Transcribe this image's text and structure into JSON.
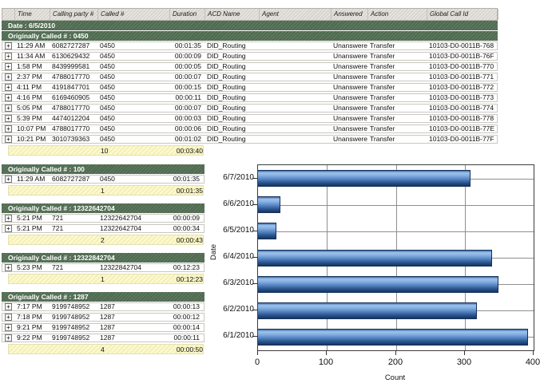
{
  "icons": {
    "expand": "+"
  },
  "colors": {
    "band_green": "#4e6a4f",
    "header_gray": "#d8d5cf",
    "summary_yellow": "#f7f3c0",
    "bar_blue_light": "#9ec2ec",
    "bar_blue_dark": "#16355f",
    "grid_gray": "#8f8f8f"
  },
  "table": {
    "columns": [
      {
        "key": "expand",
        "label": ""
      },
      {
        "key": "time",
        "label": "Time"
      },
      {
        "key": "calling",
        "label": "Calling party #"
      },
      {
        "key": "called",
        "label": "Called #"
      },
      {
        "key": "duration",
        "label": "Duration"
      },
      {
        "key": "acd",
        "label": "ACD Name"
      },
      {
        "key": "agent",
        "label": "Agent"
      },
      {
        "key": "answered",
        "label": "Answered"
      },
      {
        "key": "action",
        "label": "Action"
      },
      {
        "key": "global",
        "label": "Global Call Id"
      }
    ],
    "date_band": "Date : 6/5/2010",
    "main_group": {
      "band": "Originally Called # : 0450",
      "rows": [
        [
          "11:29 AM",
          "6082727287",
          "0450",
          "00:01:35",
          "DID_Routing",
          "",
          "Unanswered",
          "Transfer",
          "10103-D0-0011B-768"
        ],
        [
          "11:34 AM",
          "6130629432",
          "0450",
          "00:00:09",
          "DID_Routing",
          "",
          "Unanswered",
          "Transfer",
          "10103-D0-0011B-76F"
        ],
        [
          "1:58 PM",
          "8439999581",
          "0450",
          "00:00:05",
          "DID_Routing",
          "",
          "Unanswered",
          "Transfer",
          "10103-D0-0011B-770"
        ],
        [
          "2:37 PM",
          "4788017770",
          "0450",
          "00:00:07",
          "DID_Routing",
          "",
          "Unanswered",
          "Transfer",
          "10103-D0-0011B-771"
        ],
        [
          "4:11 PM",
          "4191847701",
          "0450",
          "00:00:15",
          "DID_Routing",
          "",
          "Unanswered",
          "Transfer",
          "10103-D0-0011B-772"
        ],
        [
          "4:16 PM",
          "6169460905",
          "0450",
          "00:00:11",
          "DID_Routing",
          "",
          "Unanswered",
          "Transfer",
          "10103-D0-0011B-773"
        ],
        [
          "5:05 PM",
          "4788017770",
          "0450",
          "00:00:07",
          "DID_Routing",
          "",
          "Unanswered",
          "Transfer",
          "10103-D0-0011B-774"
        ],
        [
          "5:39 PM",
          "4474012204",
          "0450",
          "00:00:03",
          "DID_Routing",
          "",
          "Unanswered",
          "Transfer",
          "10103-D0-0011B-778"
        ],
        [
          "10:07 PM",
          "4788017770",
          "0450",
          "00:00:06",
          "DID_Routing",
          "",
          "Unanswered",
          "Transfer",
          "10103-D0-0011B-77E"
        ],
        [
          "10:21 PM",
          "3010739363",
          "0450",
          "00:01:02",
          "DID_Routing",
          "",
          "Unanswered",
          "Transfer",
          "10103-D0-0011B-77F"
        ]
      ],
      "summary": {
        "count": "10",
        "total_duration": "00:03:40"
      }
    },
    "fragments": [
      {
        "band": "Originally Called # : 100",
        "rows": [
          [
            "11:29 AM",
            "6082727287",
            "0450",
            "00:01:35"
          ]
        ],
        "summary": {
          "count": "1",
          "total_duration": "00:01:35"
        }
      },
      {
        "band": "Originally Called # : 12322642704",
        "rows": [
          [
            "5:21 PM",
            "721",
            "12322642704",
            "00:00:09"
          ],
          [
            "5:21 PM",
            "721",
            "12322642704",
            "00:00:34"
          ]
        ],
        "summary": {
          "count": "2",
          "total_duration": "00:00:43"
        }
      },
      {
        "band": "Originally Called # : 12322842704",
        "rows": [
          [
            "5:23 PM",
            "721",
            "12322842704",
            "00:12:23"
          ]
        ],
        "summary": {
          "count": "1",
          "total_duration": "00:12:23"
        }
      },
      {
        "band": "Originally Called # : 1287",
        "rows": [
          [
            "7:17 PM",
            "9199748952",
            "1287",
            "00:00:13"
          ],
          [
            "7:18 PM",
            "9199748952",
            "1287",
            "00:00:12"
          ],
          [
            "9:21 PM",
            "9199748952",
            "1287",
            "00:00:14"
          ],
          [
            "9:22 PM",
            "9199748952",
            "1287",
            "00:00:11"
          ]
        ],
        "summary": {
          "count": "4",
          "total_duration": "00:00:50"
        }
      }
    ]
  },
  "chart_data": {
    "type": "bar",
    "orientation": "horizontal",
    "title": "",
    "xlabel": "Count",
    "ylabel": "Date",
    "categories": [
      "6/7/2010",
      "6/6/2010",
      "6/5/2010",
      "6/4/2010",
      "6/3/2010",
      "6/2/2010",
      "6/1/2010"
    ],
    "values": [
      308,
      33,
      27,
      340,
      349,
      318,
      392
    ],
    "xlim": [
      0,
      400
    ],
    "xticks": [
      0,
      100,
      200,
      300,
      400
    ],
    "grid": true,
    "legend": false
  }
}
